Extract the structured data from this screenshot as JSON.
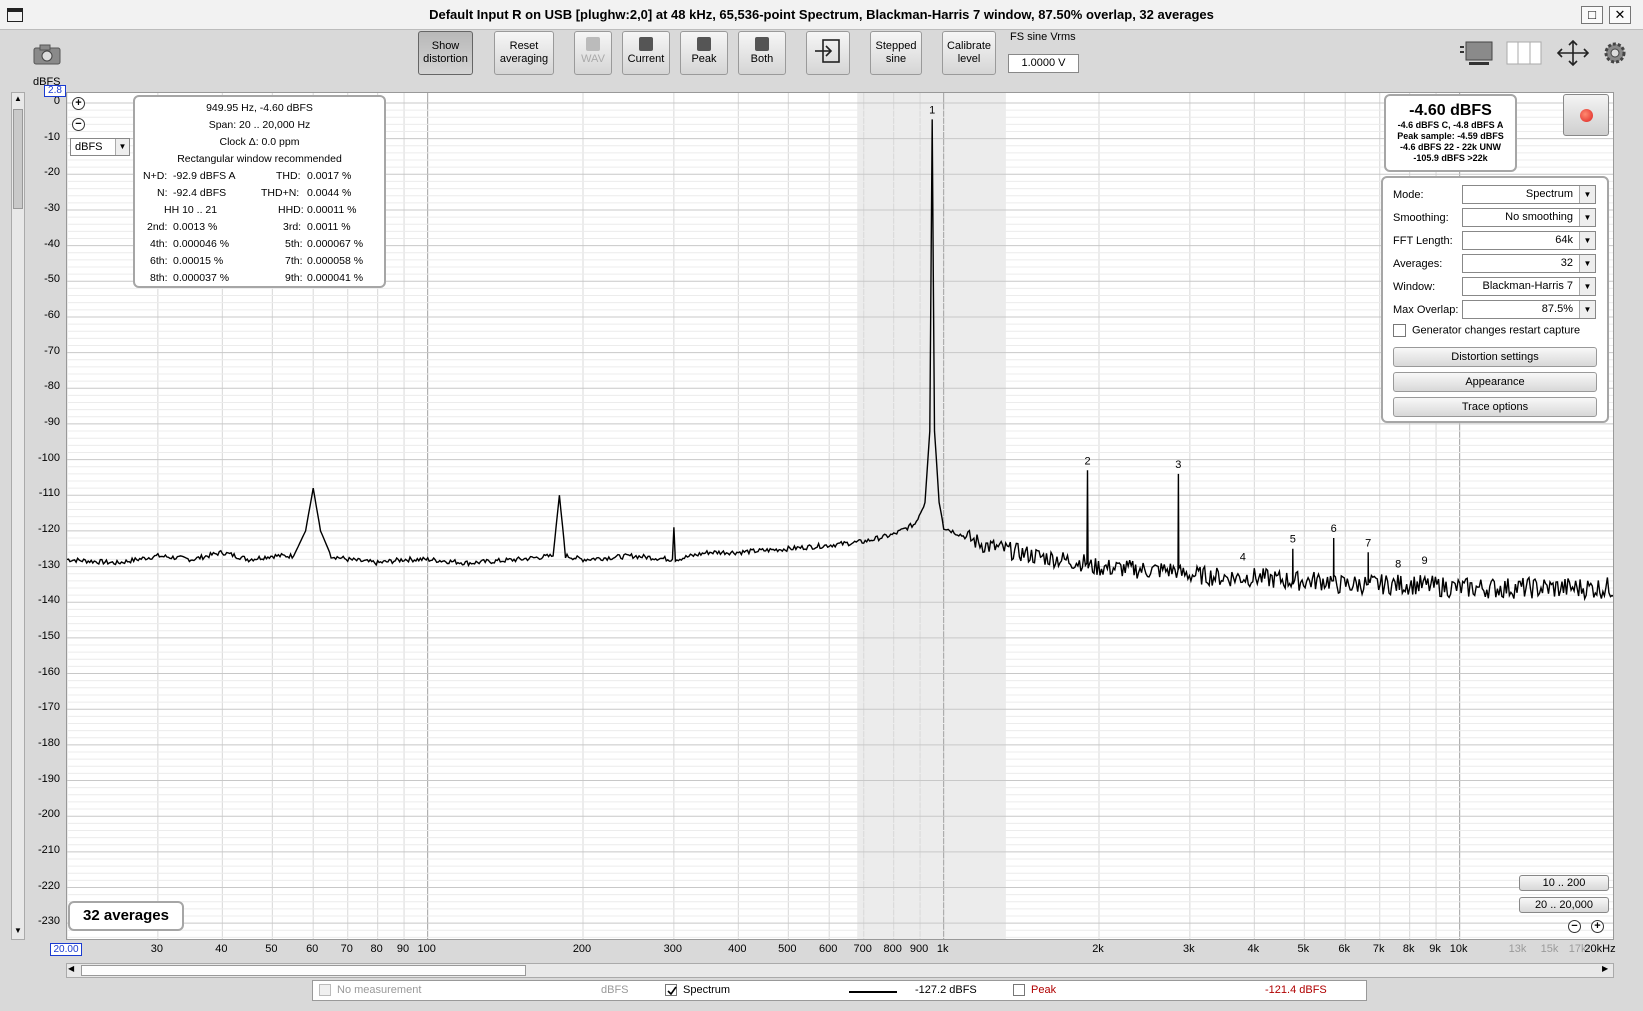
{
  "window": {
    "title": "Default Input R on USB [plughw:2,0] at 48 kHz, 65,536-point Spectrum, Blackman-Harris 7 window, 87.50% overlap, 32 averages",
    "maximize_glyph": "□",
    "close_glyph": "✕"
  },
  "toolbar": {
    "show_distortion": [
      "Show",
      "distortion"
    ],
    "reset_averaging": [
      "Reset",
      "averaging"
    ],
    "wav": "WAV",
    "current": "Current",
    "peak": "Peak",
    "both": "Both",
    "stepped_sine": [
      "Stepped",
      "sine"
    ],
    "calibrate_level": [
      "Calibrate",
      "level"
    ],
    "fs_label": "FS sine Vrms",
    "fs_value": "1.0000 V"
  },
  "plot": {
    "y_unit_top": "dBFS",
    "y_top_value": "2.8",
    "x_left_value": "20.00",
    "unit_select": "dBFS",
    "y_ticks": [
      "0",
      "-10",
      "-20",
      "-30",
      "-40",
      "-50",
      "-60",
      "-70",
      "-80",
      "-90",
      "-100",
      "-110",
      "-120",
      "-130",
      "-140",
      "-150",
      "-160",
      "-170",
      "-180",
      "-190",
      "-200",
      "-210",
      "-220",
      "-230"
    ],
    "x_ticks": [
      {
        "label": "30",
        "f": 30,
        "grey": false
      },
      {
        "label": "40",
        "f": 40,
        "grey": false
      },
      {
        "label": "50",
        "f": 50,
        "grey": false
      },
      {
        "label": "60",
        "f": 60,
        "grey": false
      },
      {
        "label": "70",
        "f": 70,
        "grey": false
      },
      {
        "label": "80",
        "f": 80,
        "grey": false
      },
      {
        "label": "90",
        "f": 90,
        "grey": false
      },
      {
        "label": "100",
        "f": 100,
        "grey": false
      },
      {
        "label": "200",
        "f": 200,
        "grey": false
      },
      {
        "label": "300",
        "f": 300,
        "grey": false
      },
      {
        "label": "400",
        "f": 400,
        "grey": false
      },
      {
        "label": "500",
        "f": 500,
        "grey": false
      },
      {
        "label": "600",
        "f": 600,
        "grey": false
      },
      {
        "label": "700",
        "f": 700,
        "grey": false
      },
      {
        "label": "800",
        "f": 800,
        "grey": false
      },
      {
        "label": "900",
        "f": 900,
        "grey": false
      },
      {
        "label": "1k",
        "f": 1000,
        "grey": false
      },
      {
        "label": "2k",
        "f": 2000,
        "grey": false
      },
      {
        "label": "3k",
        "f": 3000,
        "grey": false
      },
      {
        "label": "4k",
        "f": 4000,
        "grey": false
      },
      {
        "label": "5k",
        "f": 5000,
        "grey": false
      },
      {
        "label": "6k",
        "f": 6000,
        "grey": false
      },
      {
        "label": "7k",
        "f": 7000,
        "grey": false
      },
      {
        "label": "8k",
        "f": 8000,
        "grey": false
      },
      {
        "label": "9k",
        "f": 9000,
        "grey": false
      },
      {
        "label": "10k",
        "f": 10000,
        "grey": false
      },
      {
        "label": "13k",
        "f": 13000,
        "grey": true
      },
      {
        "label": "15k",
        "f": 15000,
        "grey": true
      },
      {
        "label": "17k",
        "f": 17000,
        "grey": true
      },
      {
        "label": "20kHz",
        "f": 20000,
        "grey": false
      }
    ],
    "averages_badge": "32 averages",
    "range_btn_1": "10 .. 200",
    "range_btn_2": "20 .. 20,000"
  },
  "info": {
    "line1": "949.95 Hz, -4.60 dBFS",
    "line2": "Span: 20 .. 20,000 Hz",
    "line3": "Clock Δ: 0.0 ppm",
    "line4": "Rectangular window recommended",
    "nd_label": "N+D:",
    "nd_value": "-92.9 dBFS A",
    "thd_label": "THD:",
    "thd_value": "0.0017 %",
    "n_label": "N:",
    "n_value": "-92.4 dBFS",
    "thdn_label": "THD+N:",
    "thdn_value": "0.0044 %",
    "hh_label": "HH 10 .. 21",
    "hhd_label": "HHD:",
    "hhd_value": "0.00011 %",
    "h2_label": "2nd:",
    "h2_value": "0.0013 %",
    "h3_label": "3rd:",
    "h3_value": "0.0011 %",
    "h4_label": "4th:",
    "h4_value": "0.000046 %",
    "h5_label": "5th:",
    "h5_value": "0.000067 %",
    "h6_label": "6th:",
    "h6_value": "0.00015 %",
    "h7_label": "7th:",
    "h7_value": "0.000058 %",
    "h8_label": "8th:",
    "h8_value": "0.000037 %",
    "h9_label": "9th:",
    "h9_value": "0.000041 %"
  },
  "level": {
    "big": "-4.60 dBFS",
    "l1": "-4.6 dBFS C, -4.8 dBFS A",
    "l2": "Peak sample: -4.59 dBFS",
    "l3": "-4.6 dBFS 22 - 22k UNW",
    "l4": "-105.9 dBFS >22k"
  },
  "controls": {
    "mode_label": "Mode:",
    "mode_value": "Spectrum",
    "smoothing_label": "Smoothing:",
    "smoothing_value": "No  smoothing",
    "fft_label": "FFT Length:",
    "fft_value": "64k",
    "averages_label": "Averages:",
    "averages_value": "32",
    "window_label": "Window:",
    "window_value": "Blackman-Harris 7",
    "overlap_label": "Max Overlap:",
    "overlap_value": "87.5%",
    "generator_restart": "Generator changes restart capture",
    "distortion_settings": "Distortion settings",
    "appearance": "Appearance",
    "trace_options": "Trace options"
  },
  "legend": {
    "no_measurement": "No measurement",
    "no_measurement_unit": "dBFS",
    "spectrum": "Spectrum",
    "spectrum_value": "-127.2 dBFS",
    "peak": "Peak",
    "peak_value": "-121.4 dBFS"
  },
  "colors": {
    "peak_text": "#b00000",
    "trace": "#000000",
    "grid": "#d8d8d8",
    "grid_major": "#a0a0a0",
    "band_shade": "#ececec",
    "blue_value_box": "#1a3bd1"
  },
  "chart_data": {
    "type": "line",
    "title": "",
    "xlabel": "",
    "ylabel": "dBFS",
    "x_scale": "log",
    "xlim": [
      20,
      20000
    ],
    "ylim": [
      -235,
      2.8
    ],
    "grid": true,
    "series": [
      {
        "name": "Spectrum",
        "x": [
          20,
          25,
          30,
          35,
          40,
          45,
          50,
          55,
          58,
          60,
          62,
          65,
          70,
          80,
          90,
          100,
          120,
          150,
          175,
          180,
          185,
          200,
          250,
          298,
          300,
          302,
          350,
          400,
          500,
          600,
          700,
          800,
          880,
          920,
          940,
          950,
          960,
          980,
          1000,
          1200,
          1500,
          1895,
          1900,
          1905,
          2500,
          2845,
          2850,
          2855,
          3500,
          4000,
          4745,
          4750,
          4755,
          5695,
          5700,
          5705,
          6645,
          6650,
          6655,
          8000,
          10000,
          13000,
          16000,
          20000
        ],
        "y": [
          -128,
          -129,
          -127,
          -128,
          -126,
          -128,
          -127,
          -127,
          -120,
          -108,
          -120,
          -127,
          -128,
          -129,
          -128,
          -128,
          -129,
          -128,
          -127,
          -110,
          -127,
          -128,
          -127,
          -128,
          -119,
          -128,
          -126,
          -126,
          -125,
          -124,
          -123,
          -121,
          -118,
          -112,
          -92,
          -4.6,
          -92,
          -112,
          -119,
          -124,
          -127,
          -129,
          -103,
          -130,
          -131,
          -131,
          -104,
          -132,
          -133,
          -133,
          -134,
          -125,
          -134,
          -134,
          -122,
          -135,
          -135,
          -126,
          -135,
          -135,
          -136,
          -136,
          -136,
          -136
        ]
      }
    ],
    "annotations": [
      {
        "label": "1",
        "x": 950,
        "y": -4.6
      },
      {
        "label": "2",
        "x": 1900,
        "y": -103
      },
      {
        "label": "3",
        "x": 2850,
        "y": -104
      },
      {
        "label": "4",
        "x": 3800,
        "y": -130
      },
      {
        "label": "5",
        "x": 4750,
        "y": -125
      },
      {
        "label": "6",
        "x": 5700,
        "y": -122
      },
      {
        "label": "7",
        "x": 6650,
        "y": -126
      },
      {
        "label": "8",
        "x": 7600,
        "y": -132
      },
      {
        "label": "9",
        "x": 8550,
        "y": -131
      }
    ],
    "shaded_band": [
      680,
      1320
    ]
  }
}
